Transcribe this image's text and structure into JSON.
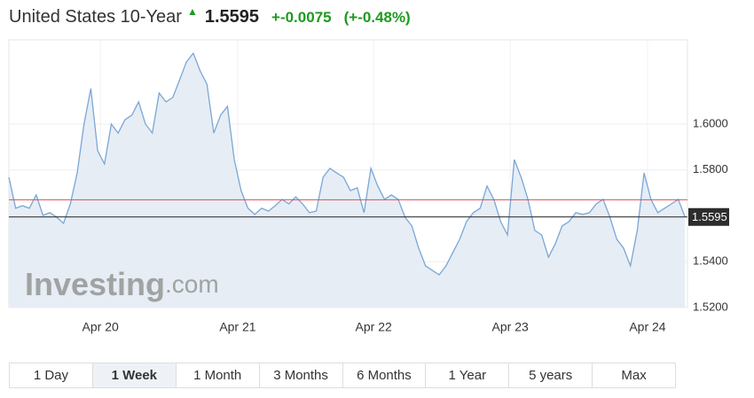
{
  "header": {
    "title": "United States 10-Year",
    "change": "+-0.0075",
    "change_pct": "(+-0.48%)"
  },
  "chart_data": {
    "type": "line",
    "last": 1.5595,
    "reference": 1.567,
    "watermark": [
      "Investing",
      ".com"
    ],
    "values": [
      1.5768,
      1.5633,
      1.5644,
      1.5633,
      1.5691,
      1.5602,
      1.5614,
      1.5594,
      1.5567,
      1.5652,
      1.5787,
      1.6,
      1.6155,
      1.5884,
      1.5826,
      1.6,
      1.5961,
      1.6019,
      1.6039,
      1.6097,
      1.6,
      1.5961,
      1.6135,
      1.6097,
      1.6116,
      1.6193,
      1.6271,
      1.6309,
      1.6232,
      1.6174,
      1.5961,
      1.6039,
      1.6077,
      1.5845,
      1.571,
      1.5633,
      1.5606,
      1.5633,
      1.5621,
      1.5644,
      1.5672,
      1.5652,
      1.5683,
      1.5652,
      1.5614,
      1.5621,
      1.5768,
      1.5807,
      1.5787,
      1.5768,
      1.571,
      1.5722,
      1.5614,
      1.5807,
      1.573,
      1.5672,
      1.5691,
      1.5672,
      1.5594,
      1.5556,
      1.5459,
      1.5382,
      1.5362,
      1.5343,
      1.5382,
      1.544,
      1.5498,
      1.5575,
      1.5614,
      1.5633,
      1.573,
      1.5672,
      1.5575,
      1.5517,
      1.5845,
      1.5768,
      1.5672,
      1.5536,
      1.5517,
      1.542,
      1.5478,
      1.5556,
      1.5575,
      1.5614,
      1.5606,
      1.5614,
      1.5652,
      1.5672,
      1.5594,
      1.5498,
      1.5459,
      1.5382,
      1.5536,
      1.5787,
      1.5672,
      1.5614,
      1.5633,
      1.5652,
      1.5672,
      1.5594
    ],
    "color": "#7aa7d6",
    "xlim": [
      0,
      99.35
    ],
    "xticks": [
      {
        "value": 13.4,
        "label": "Apr 20"
      },
      {
        "value": 33.5,
        "label": "Apr 21"
      },
      {
        "value": 53.4,
        "label": "Apr 22"
      },
      {
        "value": 73.4,
        "label": "Apr 23"
      },
      {
        "value": 93.5,
        "label": "Apr 24"
      }
    ],
    "ylim": [
      1.52,
      1.6367
    ],
    "yticks": [
      {
        "value": 1.52,
        "label": "1.5200"
      },
      {
        "value": 1.54,
        "label": "1.5400"
      },
      {
        "value": 1.56,
        "label": "1.5600"
      },
      {
        "value": 1.58,
        "label": "1.5800"
      },
      {
        "value": 1.6,
        "label": "1.6000"
      }
    ],
    "grid": true
  },
  "buttons": [
    "1 Day",
    "1 Week",
    "1 Month",
    "3 Months",
    "6 Months",
    "1 Year",
    "5 years",
    "Max"
  ],
  "active_button": 1
}
